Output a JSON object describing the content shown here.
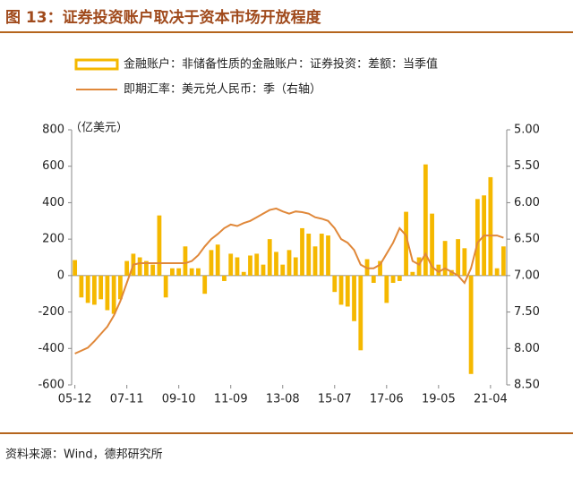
{
  "chart_data": {
    "type": "bar_line",
    "title": "图 13：证券投资账户取决于资本市场开放程度",
    "y_unit_label": "（亿美元）",
    "source": "资料来源：Wind，德邦研究所",
    "categories": [
      "05-12",
      null,
      null,
      null,
      null,
      null,
      null,
      null,
      "07-11",
      null,
      null,
      null,
      null,
      null,
      null,
      null,
      "09-10",
      null,
      null,
      null,
      null,
      null,
      null,
      null,
      "11-09",
      null,
      null,
      null,
      null,
      null,
      null,
      null,
      "13-08",
      null,
      null,
      null,
      null,
      null,
      null,
      null,
      "15-07",
      null,
      null,
      null,
      null,
      null,
      null,
      null,
      "17-06",
      null,
      null,
      null,
      null,
      null,
      null,
      null,
      "19-05",
      null,
      null,
      null,
      null,
      null,
      null,
      null,
      "21-04",
      null,
      null
    ],
    "series": [
      {
        "name": "金融账户：非储备性质的金融账户：证券投资：差额：当季值",
        "color": "#f5b800",
        "kind": "bar",
        "values": [
          85,
          -120,
          -150,
          -160,
          -130,
          -190,
          -210,
          -130,
          80,
          120,
          100,
          80,
          60,
          330,
          -120,
          40,
          40,
          160,
          40,
          40,
          -100,
          140,
          170,
          -30,
          120,
          100,
          20,
          110,
          120,
          60,
          200,
          130,
          60,
          140,
          100,
          260,
          230,
          160,
          230,
          220,
          -90,
          -160,
          -170,
          -250,
          -410,
          90,
          -40,
          80,
          -150,
          -40,
          -30,
          350,
          20,
          100,
          610,
          340,
          60,
          190,
          30,
          200,
          150,
          -540,
          420,
          440,
          540,
          40,
          160
        ]
      },
      {
        "name": "即期汇率：美元兑人民币：季（右轴）",
        "color": "#e0883a",
        "kind": "line",
        "axis": "y2",
        "values": [
          8.07,
          8.03,
          7.99,
          7.9,
          7.8,
          7.7,
          7.55,
          7.35,
          7.1,
          6.85,
          6.83,
          6.83,
          6.83,
          6.83,
          6.83,
          6.83,
          6.83,
          6.83,
          6.8,
          6.72,
          6.6,
          6.5,
          6.43,
          6.35,
          6.3,
          6.32,
          6.28,
          6.25,
          6.2,
          6.15,
          6.1,
          6.08,
          6.12,
          6.15,
          6.12,
          6.13,
          6.15,
          6.2,
          6.22,
          6.25,
          6.35,
          6.5,
          6.55,
          6.65,
          6.85,
          6.9,
          6.9,
          6.85,
          6.7,
          6.55,
          6.35,
          6.45,
          6.8,
          6.85,
          6.7,
          6.88,
          6.95,
          6.9,
          6.95,
          7.0,
          7.1,
          6.9,
          6.55,
          6.45,
          6.45,
          6.45,
          6.48
        ]
      }
    ],
    "ylim": [
      -600,
      800
    ],
    "yticks": [
      -600,
      -400,
      -200,
      0,
      200,
      400,
      600,
      800
    ],
    "y2lim": [
      8.5,
      5.0
    ],
    "y2ticks": [
      {
        "value": 5.0,
        "label": "5.00"
      },
      {
        "value": 5.5,
        "label": "5.50"
      },
      {
        "value": 6.0,
        "label": "6.00"
      },
      {
        "value": 6.5,
        "label": "6.50"
      },
      {
        "value": 7.0,
        "label": "7.00"
      },
      {
        "value": 7.5,
        "label": "7.50"
      },
      {
        "value": 8.0,
        "label": "8.00"
      },
      {
        "value": 8.5,
        "label": "8.50"
      }
    ],
    "grid": false
  }
}
